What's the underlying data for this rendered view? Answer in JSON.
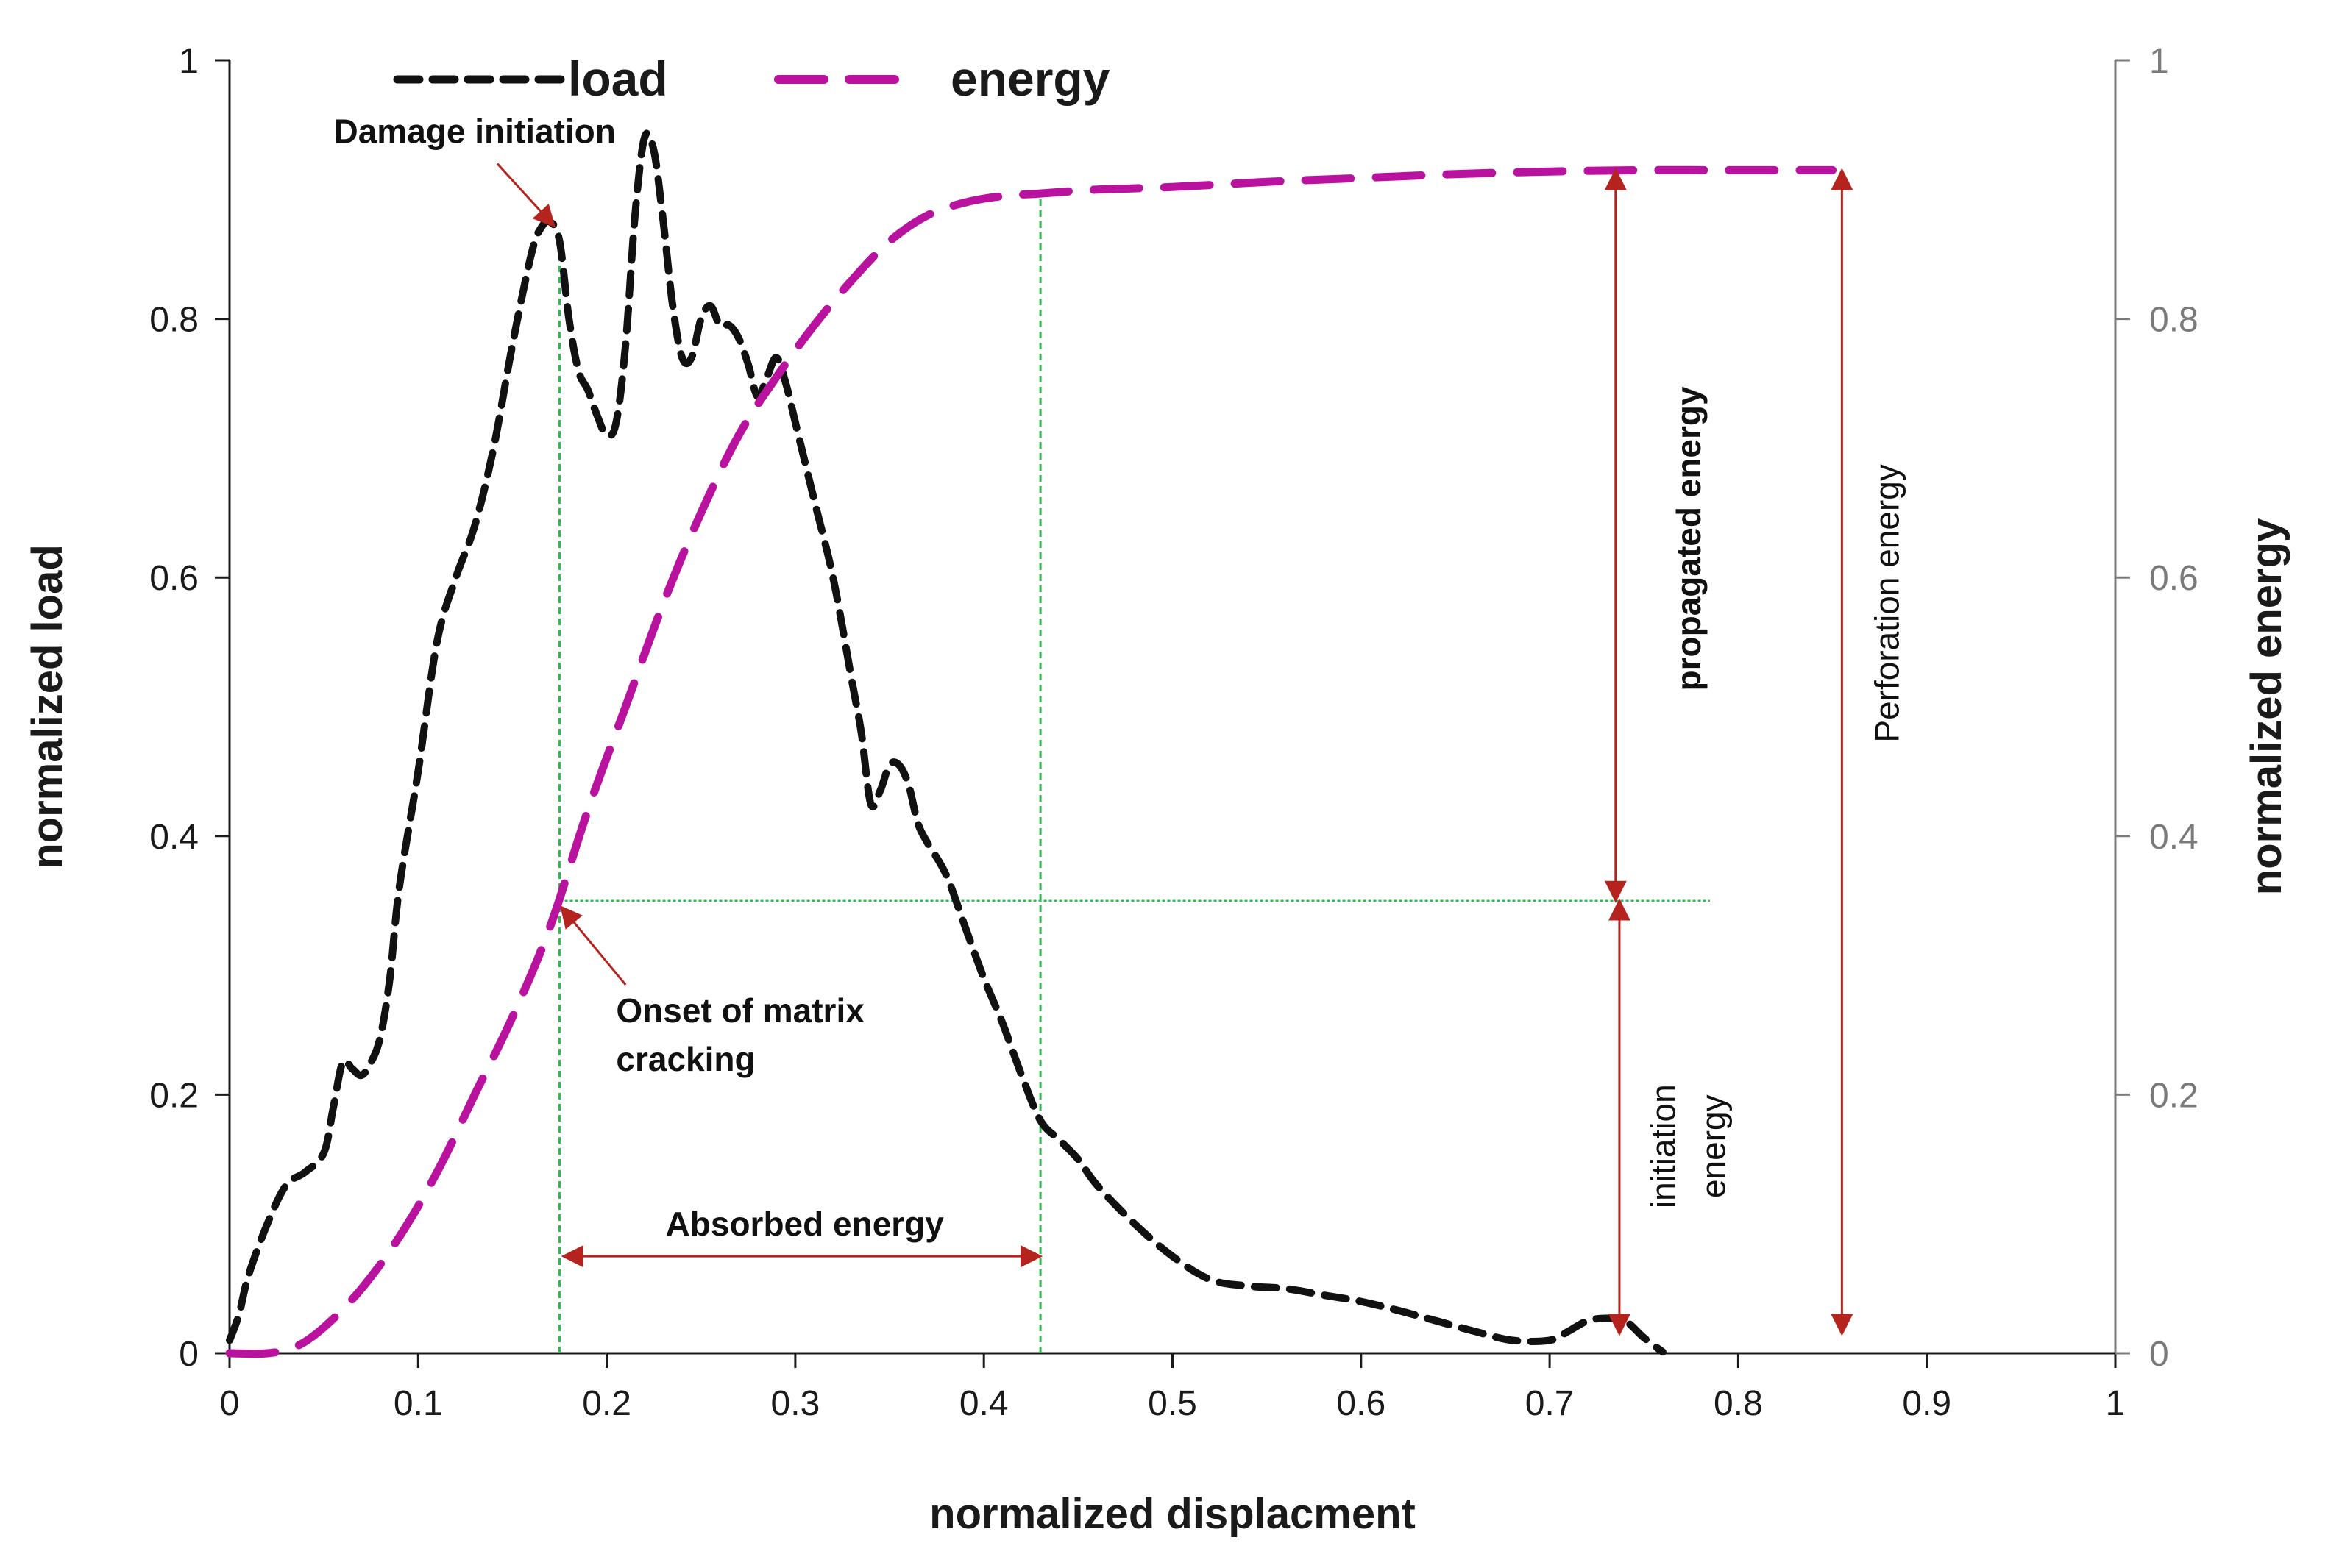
{
  "chart_data": {
    "type": "line",
    "xlabel": "normalized displacment",
    "ylabel": "normalized load",
    "y2label": "normalized energy",
    "xlim": [
      0,
      1
    ],
    "ylim": [
      0,
      1
    ],
    "y2lim": [
      0,
      1
    ],
    "xticks": [
      "0",
      "0.1",
      "0.2",
      "0.3",
      "0.4",
      "0.5",
      "0.6",
      "0.7",
      "0.8",
      "0.9",
      "1"
    ],
    "yticks": [
      "0",
      "0.2",
      "0.4",
      "0.6",
      "0.8",
      "1"
    ],
    "y2ticks": [
      "0",
      "0.2",
      "0.4",
      "0.6",
      "0.8",
      "1"
    ],
    "grid": false,
    "legend_position": "top",
    "series": [
      {
        "name": "load",
        "color": "#111111",
        "axis": "left",
        "x": [
          0,
          0.005,
          0.01,
          0.02,
          0.03,
          0.04,
          0.05,
          0.055,
          0.06,
          0.065,
          0.07,
          0.075,
          0.08,
          0.085,
          0.09,
          0.1,
          0.11,
          0.12,
          0.13,
          0.14,
          0.15,
          0.16,
          0.165,
          0.17,
          0.175,
          0.18,
          0.185,
          0.19,
          0.195,
          0.2,
          0.205,
          0.21,
          0.215,
          0.22,
          0.225,
          0.23,
          0.235,
          0.24,
          0.245,
          0.25,
          0.255,
          0.26,
          0.265,
          0.27,
          0.275,
          0.28,
          0.285,
          0.29,
          0.295,
          0.3,
          0.31,
          0.32,
          0.33,
          0.335,
          0.34,
          0.345,
          0.35,
          0.355,
          0.36,
          0.365,
          0.37,
          0.38,
          0.39,
          0.4,
          0.41,
          0.42,
          0.43,
          0.44,
          0.45,
          0.46,
          0.48,
          0.5,
          0.52,
          0.54,
          0.56,
          0.58,
          0.6,
          0.62,
          0.64,
          0.66,
          0.68,
          0.7,
          0.71,
          0.72,
          0.73,
          0.74,
          0.75,
          0.76
        ],
        "y": [
          0.01,
          0.03,
          0.06,
          0.1,
          0.13,
          0.14,
          0.155,
          0.19,
          0.225,
          0.22,
          0.215,
          0.225,
          0.245,
          0.29,
          0.36,
          0.45,
          0.55,
          0.6,
          0.64,
          0.7,
          0.78,
          0.85,
          0.87,
          0.875,
          0.86,
          0.8,
          0.76,
          0.745,
          0.725,
          0.71,
          0.72,
          0.78,
          0.88,
          0.94,
          0.93,
          0.875,
          0.81,
          0.77,
          0.77,
          0.8,
          0.81,
          0.795,
          0.795,
          0.785,
          0.765,
          0.74,
          0.755,
          0.77,
          0.75,
          0.72,
          0.66,
          0.6,
          0.52,
          0.48,
          0.425,
          0.435,
          0.455,
          0.455,
          0.44,
          0.41,
          0.395,
          0.37,
          0.33,
          0.29,
          0.255,
          0.215,
          0.18,
          0.165,
          0.15,
          0.13,
          0.1,
          0.075,
          0.057,
          0.052,
          0.05,
          0.045,
          0.04,
          0.033,
          0.025,
          0.017,
          0.01,
          0.01,
          0.017,
          0.025,
          0.027,
          0.025,
          0.012,
          0.001
        ]
      },
      {
        "name": "energy",
        "color": "#b8129f",
        "axis": "right",
        "x": [
          0,
          0.02,
          0.035,
          0.05,
          0.07,
          0.09,
          0.11,
          0.13,
          0.15,
          0.17,
          0.19,
          0.21,
          0.23,
          0.25,
          0.27,
          0.29,
          0.31,
          0.33,
          0.35,
          0.37,
          0.39,
          0.41,
          0.43,
          0.46,
          0.5,
          0.55,
          0.6,
          0.65,
          0.7,
          0.75,
          0.8,
          0.85
        ],
        "y": [
          0,
          0,
          0.005,
          0.02,
          0.05,
          0.09,
          0.14,
          0.2,
          0.26,
          0.33,
          0.42,
          0.5,
          0.58,
          0.65,
          0.71,
          0.755,
          0.795,
          0.83,
          0.86,
          0.88,
          0.89,
          0.895,
          0.897,
          0.9,
          0.902,
          0.906,
          0.909,
          0.912,
          0.914,
          0.915,
          0.915,
          0.915
        ]
      }
    ],
    "guide_lines": [
      {
        "type": "vertical",
        "x": 0.175,
        "y_from": 0,
        "y_to": 0.87
      },
      {
        "type": "vertical",
        "x": 0.43,
        "y_from": 0,
        "y_to": 0.9
      },
      {
        "type": "horizontal",
        "y": 0.35,
        "x_from": 0.175,
        "x_to": 0.785
      }
    ],
    "annotations": [
      {
        "id": "damage-initiation",
        "text": "Damage initiation",
        "x": 0.13,
        "y": 0.945,
        "arrow_to": [
          0.172,
          0.872
        ]
      },
      {
        "id": "onset-matrix-cracking",
        "text_lines": [
          "Onset of matrix",
          "cracking"
        ],
        "x": 0.205,
        "y": 0.265,
        "arrow_to": [
          0.176,
          0.345
        ]
      },
      {
        "id": "absorbed-energy",
        "text": "Absorbed energy",
        "x": 0.305,
        "y": 0.1,
        "span_x": [
          0.177,
          0.43
        ],
        "span_y": 0.075
      },
      {
        "id": "propagated-energy",
        "text": "propagated energy",
        "rotated": true,
        "x": 0.78,
        "y": 0.63,
        "span_y": [
          0.35,
          0.915
        ],
        "span_x": 0.735
      },
      {
        "id": "initiation-energy",
        "text_lines": [
          "initiation",
          "energy"
        ],
        "rotated": true,
        "x": 0.775,
        "y": 0.16,
        "span_y": [
          0.015,
          0.35
        ],
        "span_x": 0.737
      },
      {
        "id": "perforation-energy",
        "text": "Perforation energy",
        "rotated": true,
        "x": 0.885,
        "y": 0.58,
        "span_y": [
          0.015,
          0.915
        ],
        "span_x": 0.855
      }
    ],
    "colors": {
      "axis_left": "#1a1a1a",
      "axis_right": "#7a7a7a",
      "guide": "#2fba4e",
      "arrow": "#b5231f"
    }
  }
}
